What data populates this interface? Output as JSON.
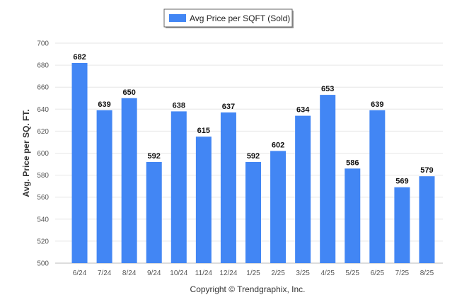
{
  "chart_data": {
    "type": "bar",
    "categories": [
      "6/24",
      "7/24",
      "8/24",
      "9/24",
      "10/24",
      "11/24",
      "12/24",
      "1/25",
      "2/25",
      "3/25",
      "4/25",
      "5/25",
      "6/25",
      "7/25",
      "8/25"
    ],
    "series": [
      {
        "name": "Avg Price per SQFT (Sold)",
        "values": [
          682,
          639,
          650,
          592,
          638,
          615,
          637,
          592,
          602,
          634,
          653,
          586,
          639,
          569,
          579
        ]
      }
    ],
    "ylabel": "Avg. Price per SQ. FT.",
    "ylim": [
      500,
      700
    ],
    "yticks": [
      500,
      520,
      540,
      560,
      580,
      600,
      620,
      640,
      660,
      680,
      700
    ],
    "grid": true,
    "legend": "top-center",
    "colors": {
      "bar": "#4286f4",
      "grid": "#e6e6e6"
    }
  },
  "footer": {
    "copyright": "Copyright © Trendgraphix, Inc."
  }
}
